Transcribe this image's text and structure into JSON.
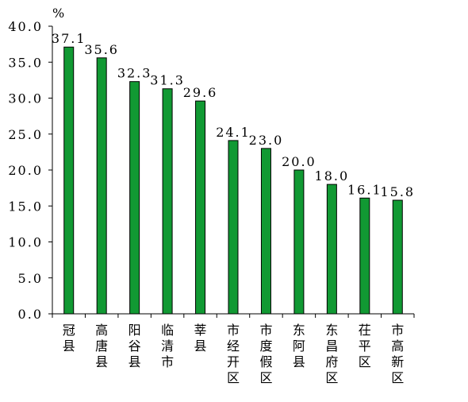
{
  "chart_data": {
    "type": "bar",
    "categories": [
      "冠县",
      "高唐县",
      "阳谷县",
      "临清市",
      "莘县",
      "市经开区",
      "市度假区",
      "东阿县",
      "东昌府区",
      "茌平区",
      "市高新区"
    ],
    "values": [
      37.1,
      35.6,
      32.3,
      31.3,
      29.6,
      24.1,
      23.0,
      20.0,
      18.0,
      16.1,
      15.8
    ],
    "value_labels": [
      "37.1",
      "35.6",
      "32.3",
      "31.3",
      "29.6",
      "24.1",
      "23.0",
      "20.0",
      "18.0",
      "16.1",
      "15.8"
    ],
    "unit": "%",
    "ylim": [
      0,
      40
    ],
    "yticks": [
      0,
      5,
      10,
      15,
      20,
      25,
      30,
      35,
      40
    ],
    "ytick_labels": [
      "0.0",
      "5.0",
      "10.0",
      "15.0",
      "20.0",
      "25.0",
      "30.0",
      "35.0",
      "40.0"
    ],
    "bar_color": "#119933",
    "grid": false,
    "title": "",
    "xlabel": "",
    "ylabel": ""
  }
}
